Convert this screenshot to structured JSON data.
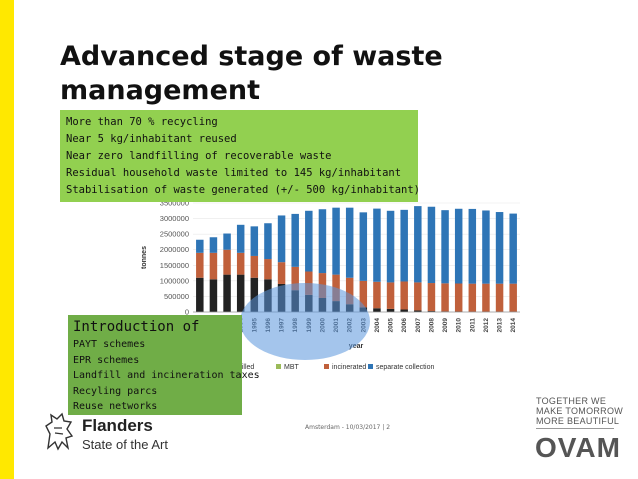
{
  "title": "Advanced stage of waste management",
  "highlights": [
    "More than 70 % recycling",
    "Near 5 kg/inhabitant reused",
    "Near zero landfilling of recoverable waste",
    "Residual household waste limited to 145 kg/inhabitant",
    "Stabilisation of waste generated (+/- 500 kg/inhabitant)"
  ],
  "intro": {
    "heading": "Introduction of",
    "items": [
      "PAYT schemes",
      "EPR schemes",
      "Landfill and incineration taxes",
      "Recyling parcs",
      "Reuse networks"
    ]
  },
  "chart_data": {
    "type": "bar",
    "stacked": true,
    "ylabel": "tonnes",
    "xlabel": "year",
    "ylim": [
      0,
      3500000
    ],
    "yticks": [
      "0",
      "500000",
      "1000000",
      "1500000",
      "2000000",
      "2500000",
      "3000000",
      "3500000"
    ],
    "categories": [
      "1991",
      "1992",
      "1993",
      "1994",
      "1995",
      "1996",
      "1997",
      "1998",
      "1999",
      "2000",
      "2001",
      "2002",
      "2003",
      "2004",
      "2005",
      "2006",
      "2007",
      "2008",
      "2009",
      "2010",
      "2011",
      "2012",
      "2013",
      "2014"
    ],
    "series": [
      {
        "name": "landfilled",
        "color": "#222222",
        "values": [
          1100000,
          1050000,
          1200000,
          1200000,
          1100000,
          1050000,
          900000,
          700000,
          550000,
          450000,
          350000,
          250000,
          150000,
          120000,
          100000,
          80000,
          50000,
          30000,
          20000,
          15000,
          10000,
          10000,
          10000,
          10000
        ]
      },
      {
        "name": "MBT",
        "color": "#9bbb59",
        "values": [
          0,
          0,
          0,
          0,
          0,
          0,
          0,
          0,
          0,
          0,
          0,
          0,
          0,
          0,
          0,
          0,
          0,
          0,
          0,
          0,
          0,
          0,
          0,
          0
        ]
      },
      {
        "name": "incinerated",
        "color": "#c0603b",
        "values": [
          800000,
          850000,
          800000,
          700000,
          700000,
          650000,
          700000,
          750000,
          750000,
          800000,
          850000,
          850000,
          850000,
          850000,
          850000,
          900000,
          900000,
          900000,
          900000,
          900000,
          900000,
          900000,
          900000,
          900000
        ]
      },
      {
        "name": "separate collection",
        "color": "#2e75b6",
        "values": [
          420000,
          500000,
          520000,
          900000,
          950000,
          1150000,
          1500000,
          1700000,
          1950000,
          2050000,
          2150000,
          2250000,
          2200000,
          2350000,
          2300000,
          2300000,
          2450000,
          2450000,
          2350000,
          2400000,
          2400000,
          2350000,
          2300000,
          2250000
        ]
      }
    ],
    "legend": {
      "visible_labels": [
        "dfilled",
        "MBT",
        "incinerated",
        "separate collection"
      ],
      "placement": "bottom"
    }
  },
  "footer": {
    "event": "Amsterdam - 10/03/2017 | 2"
  },
  "branding": {
    "flanders_name": "Flanders",
    "flanders_sub": "State of the Art",
    "ovam_tagline": [
      "TOGETHER WE",
      "MAKE TOMORROW",
      "MORE BEAUTIFUL"
    ],
    "ovam_logo": "OVAM"
  },
  "colors": {
    "accent_bar": "#ffe800",
    "highlight_box": "#92d050",
    "intro_box": "#70ad47"
  }
}
